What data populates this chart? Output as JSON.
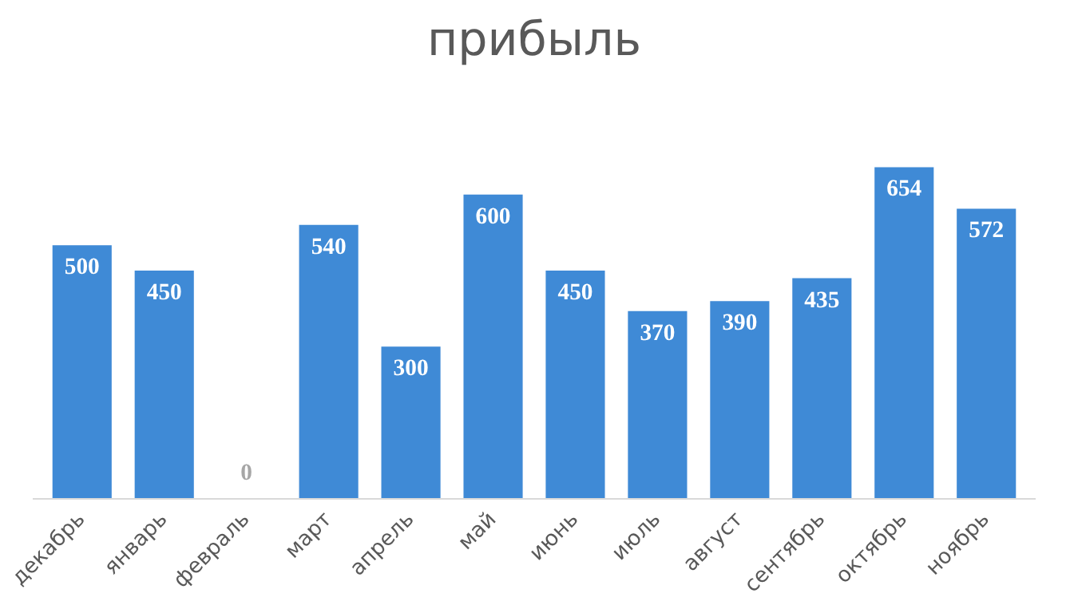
{
  "chart_data": {
    "type": "bar",
    "title": "прибыль",
    "categories": [
      "декабрь",
      "январь",
      "февраль",
      "март",
      "апрель",
      "май",
      "июнь",
      "июль",
      "август",
      "сентябрь",
      "октябрь",
      "ноябрь"
    ],
    "values": [
      500,
      450,
      0,
      540,
      300,
      600,
      450,
      370,
      390,
      435,
      654,
      572
    ],
    "color": "#3f8ad6",
    "data_labels": true,
    "grid": false
  }
}
